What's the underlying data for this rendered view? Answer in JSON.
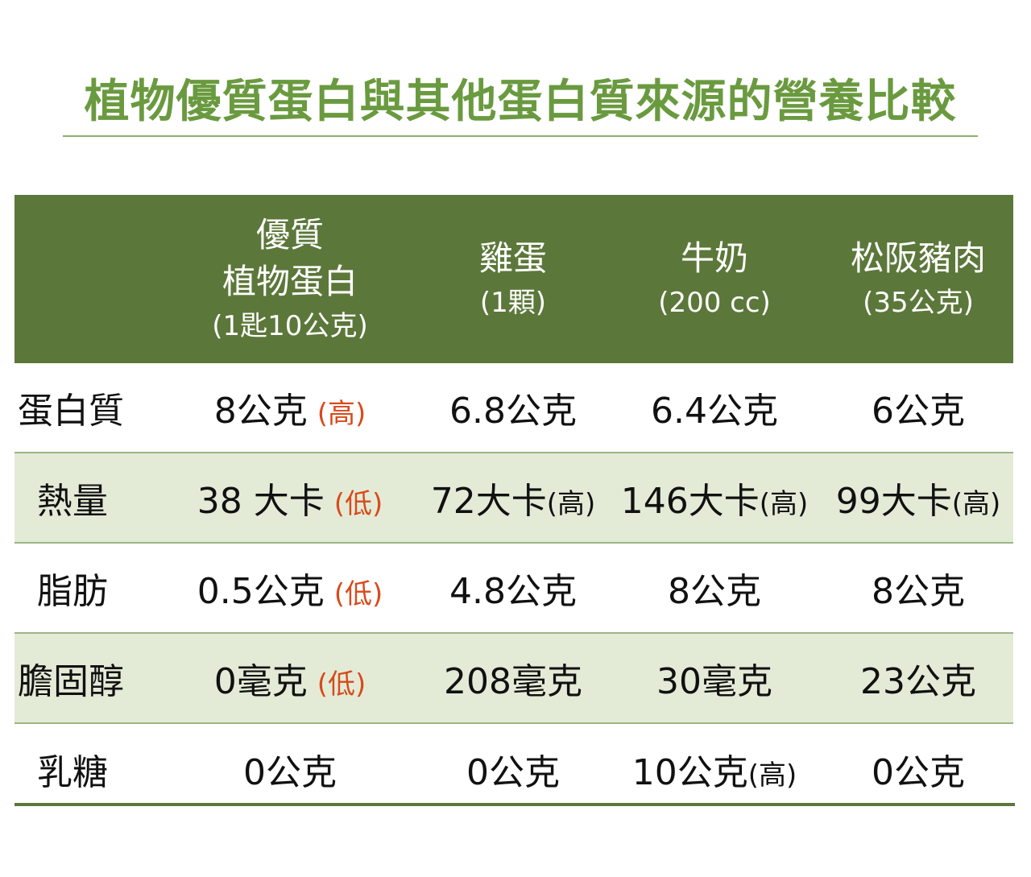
{
  "title": "植物優質蛋白與其他蛋白質來源的營養比較",
  "colors": {
    "title": "#6a9a3f",
    "header_bg": "#5c773a",
    "row_shade": "#e3ebd7",
    "note_red": "#d84a1b"
  },
  "header": {
    "columns": [
      {
        "name_lines": [
          "優質",
          "植物蛋白"
        ],
        "sub": "(1匙10公克)"
      },
      {
        "name_lines": [
          "雞蛋"
        ],
        "sub": "(1顆)"
      },
      {
        "name_lines": [
          "牛奶"
        ],
        "sub": "(200 cc)"
      },
      {
        "name_lines": [
          "松阪豬肉"
        ],
        "sub": "(35公克)"
      }
    ]
  },
  "rows": [
    {
      "label": "蛋白質",
      "cells": [
        {
          "value": "8公克",
          "tag": "(高)",
          "tag_red": true
        },
        {
          "value": "6.8公克",
          "tag": "",
          "tag_red": false
        },
        {
          "value": "6.4公克",
          "tag": "",
          "tag_red": false
        },
        {
          "value": "6公克",
          "tag": "",
          "tag_red": false
        }
      ]
    },
    {
      "label": "熱量",
      "cells": [
        {
          "value": "38 大卡",
          "tag": "(低)",
          "tag_red": true
        },
        {
          "value": "72大卡",
          "tag": "(高)",
          "tag_red": false
        },
        {
          "value": "146大卡",
          "tag": "(高)",
          "tag_red": false
        },
        {
          "value": "99大卡",
          "tag": "(高)",
          "tag_red": false
        }
      ]
    },
    {
      "label": "脂肪",
      "cells": [
        {
          "value": "0.5公克",
          "tag": "(低)",
          "tag_red": true
        },
        {
          "value": "4.8公克",
          "tag": "",
          "tag_red": false
        },
        {
          "value": "8公克",
          "tag": "",
          "tag_red": false
        },
        {
          "value": "8公克",
          "tag": "",
          "tag_red": false
        }
      ]
    },
    {
      "label": "膽固醇",
      "cells": [
        {
          "value": "0毫克",
          "tag": "(低)",
          "tag_red": true
        },
        {
          "value": "208毫克",
          "tag": "",
          "tag_red": false
        },
        {
          "value": "30毫克",
          "tag": "",
          "tag_red": false
        },
        {
          "value": "23公克",
          "tag": "",
          "tag_red": false
        }
      ]
    },
    {
      "label": "乳糖",
      "cells": [
        {
          "value": "0公克",
          "tag": "",
          "tag_red": false
        },
        {
          "value": "0公克",
          "tag": "",
          "tag_red": false
        },
        {
          "value": "10公克",
          "tag": "(高)",
          "tag_red": false
        },
        {
          "value": "0公克",
          "tag": "",
          "tag_red": false
        }
      ]
    }
  ]
}
